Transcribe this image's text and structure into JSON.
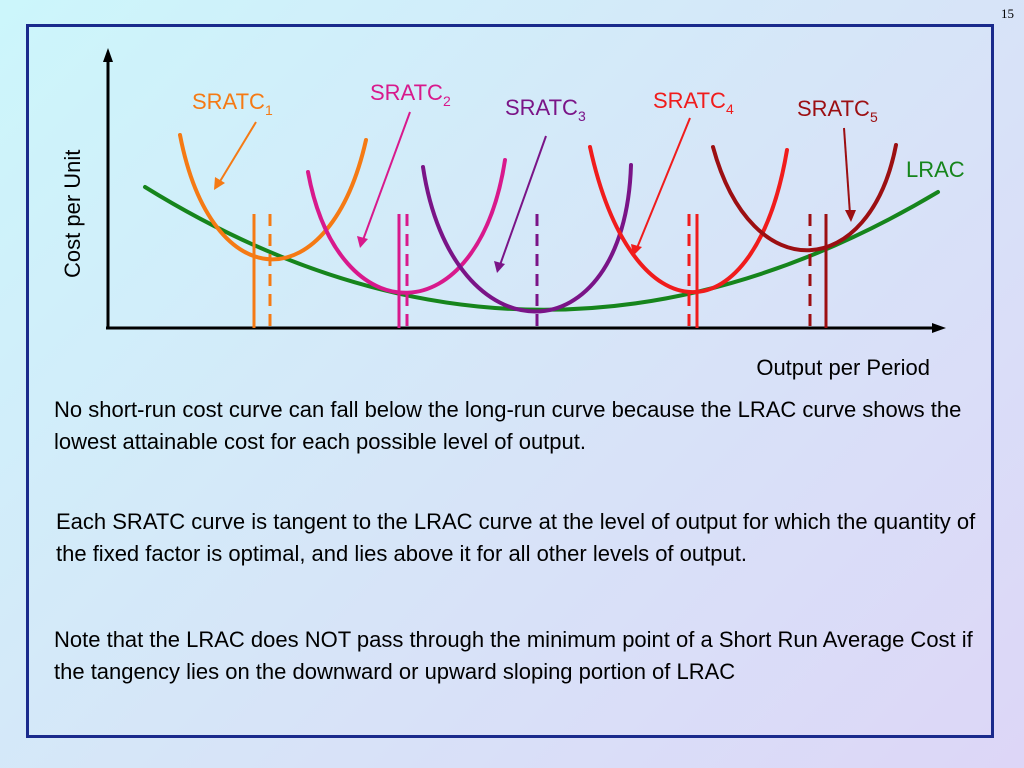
{
  "slide": {
    "number": "15"
  },
  "diagram": {
    "y_axis_label": "Cost per Unit",
    "x_axis_label": "Output per Period",
    "lrac_label": "LRAC",
    "curves": [
      {
        "base": "SRATC",
        "sub": "1",
        "color": "#f57a14"
      },
      {
        "base": "SRATC",
        "sub": "2",
        "color": "#d8198c"
      },
      {
        "base": "SRATC",
        "sub": "3",
        "color": "#7a1487"
      },
      {
        "base": "SRATC",
        "sub": "4",
        "color": "#f01c1c"
      },
      {
        "base": "SRATC",
        "sub": "5",
        "color": "#9c0f12"
      }
    ],
    "lrac_color": "#16851c",
    "axis_color": "#000000"
  },
  "text": {
    "para1": "No short-run cost curve can fall below the long-run curve because the LRAC curve shows the lowest attainable cost for each possible level of output.",
    "para2": "Each SRATC curve is tangent to the LRAC curve at the level of output for which the quantity of the fixed factor is optimal, and lies above it for all other levels of output.",
    "para3": "Note that the LRAC does NOT pass through the minimum point of a Short Run Average Cost if the tangency lies on the downward or upward sloping portion of LRAC"
  }
}
